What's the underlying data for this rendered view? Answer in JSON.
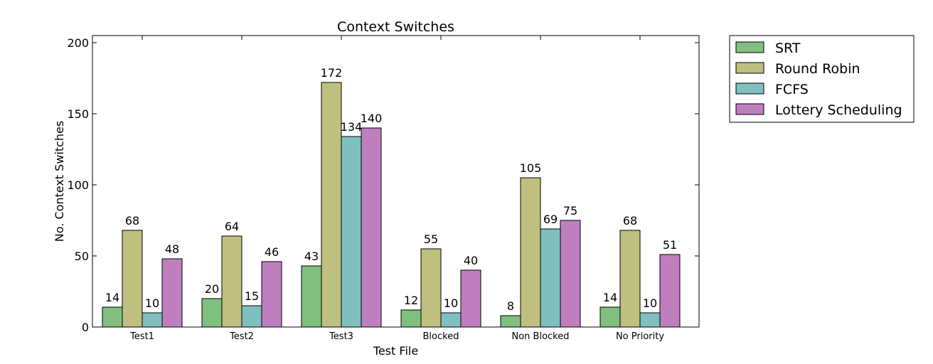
{
  "chart_data": {
    "type": "bar",
    "title": "Context Switches",
    "xlabel": "Test File",
    "ylabel": "No. Context Switches",
    "categories": [
      "Test1",
      "Test2",
      "Test3",
      "Blocked",
      "Non Blocked",
      "No Priority"
    ],
    "ylim": [
      0,
      205
    ],
    "yticks": [
      0,
      50,
      100,
      150,
      200
    ],
    "grid": false,
    "legend_position": "outside-right-top",
    "series": [
      {
        "name": "SRT",
        "color": "#80bf7f",
        "values": [
          14,
          20,
          43,
          12,
          8,
          14
        ]
      },
      {
        "name": "Round Robin",
        "color": "#bfbf7f",
        "values": [
          68,
          64,
          172,
          55,
          105,
          68
        ]
      },
      {
        "name": "FCFS",
        "color": "#7fbfbf",
        "values": [
          10,
          15,
          134,
          10,
          69,
          10
        ]
      },
      {
        "name": "Lottery Scheduling",
        "color": "#bf7fbf",
        "values": [
          48,
          46,
          140,
          40,
          75,
          51
        ]
      }
    ]
  }
}
